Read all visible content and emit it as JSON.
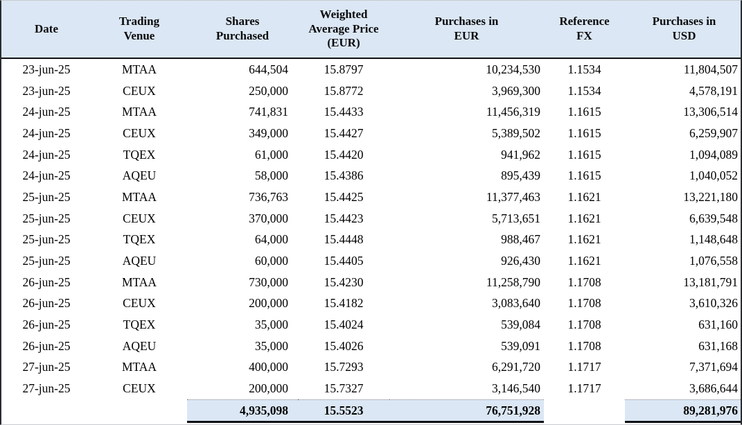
{
  "colors": {
    "header_bg": "#dbe7f4",
    "total_bg": "#dbe7f4",
    "rule": "#101216",
    "text": "#000000"
  },
  "table": {
    "columns": [
      "Date",
      "Trading\nVenue",
      "Shares\nPurchased",
      "Weighted\nAverage Price\n(EUR)",
      "Purchases in\nEUR",
      "Reference\nFX",
      "Purchases in\nUSD"
    ],
    "rows": [
      [
        "23-jun-25",
        "MTAA",
        "644,504",
        "15.8797",
        "10,234,530",
        "1.1534",
        "11,804,507"
      ],
      [
        "23-jun-25",
        "CEUX",
        "250,000",
        "15.8772",
        "3,969,300",
        "1.1534",
        "4,578,191"
      ],
      [
        "24-jun-25",
        "MTAA",
        "741,831",
        "15.4433",
        "11,456,319",
        "1.1615",
        "13,306,514"
      ],
      [
        "24-jun-25",
        "CEUX",
        "349,000",
        "15.4427",
        "5,389,502",
        "1.1615",
        "6,259,907"
      ],
      [
        "24-jun-25",
        "TQEX",
        "61,000",
        "15.4420",
        "941,962",
        "1.1615",
        "1,094,089"
      ],
      [
        "24-jun-25",
        "AQEU",
        "58,000",
        "15.4386",
        "895,439",
        "1.1615",
        "1,040,052"
      ],
      [
        "25-jun-25",
        "MTAA",
        "736,763",
        "15.4425",
        "11,377,463",
        "1.1621",
        "13,221,180"
      ],
      [
        "25-jun-25",
        "CEUX",
        "370,000",
        "15.4423",
        "5,713,651",
        "1.1621",
        "6,639,548"
      ],
      [
        "25-jun-25",
        "TQEX",
        "64,000",
        "15.4448",
        "988,467",
        "1.1621",
        "1,148,648"
      ],
      [
        "25-jun-25",
        "AQEU",
        "60,000",
        "15.4405",
        "926,430",
        "1.1621",
        "1,076,558"
      ],
      [
        "26-jun-25",
        "MTAA",
        "730,000",
        "15.4230",
        "11,258,790",
        "1.1708",
        "13,181,791"
      ],
      [
        "26-jun-25",
        "CEUX",
        "200,000",
        "15.4182",
        "3,083,640",
        "1.1708",
        "3,610,326"
      ],
      [
        "26-jun-25",
        "TQEX",
        "35,000",
        "15.4024",
        "539,084",
        "1.1708",
        "631,160"
      ],
      [
        "26-jun-25",
        "AQEU",
        "35,000",
        "15.4026",
        "539,091",
        "1.1708",
        "631,168"
      ],
      [
        "27-jun-25",
        "MTAA",
        "400,000",
        "15.7293",
        "6,291,720",
        "1.1717",
        "7,371,694"
      ],
      [
        "27-jun-25",
        "CEUX",
        "200,000",
        "15.7327",
        "3,146,540",
        "1.1717",
        "3,686,644"
      ]
    ],
    "totals": {
      "shares_purchased": "4,935,098",
      "weighted_average_price": "15.5523",
      "purchases_eur": "76,751,928",
      "reference_fx": "",
      "purchases_usd": "89,281,976"
    }
  }
}
